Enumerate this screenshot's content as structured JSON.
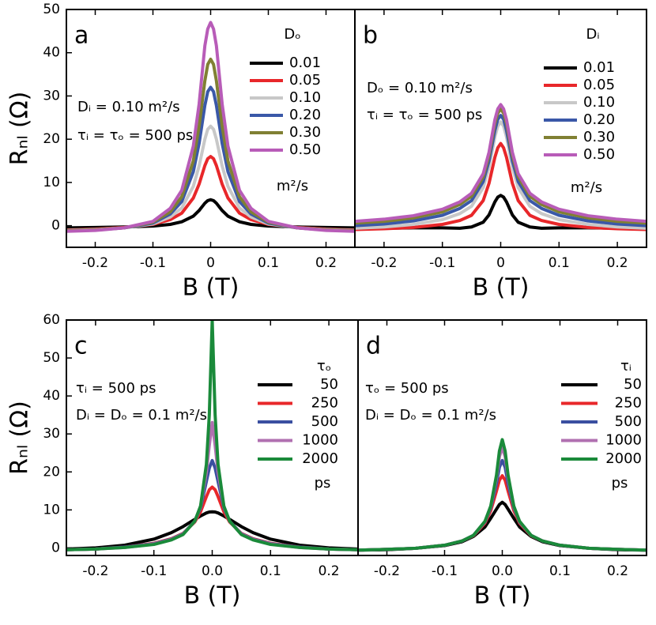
{
  "chart_data": [
    {
      "type": "line",
      "panel": "a",
      "ylabel": "Rₙₗ (Ω)",
      "xlabel": "B (T)",
      "annotations": [
        "Dᵢ = 0.10 m²/s",
        "τᵢ = τₒ = 500 ps"
      ],
      "legend_title": "Dₒ",
      "legend_footer": "m²/s",
      "xlim": [
        -0.25,
        0.25
      ],
      "ylim": [
        -5,
        50
      ],
      "xticks": [
        -0.2,
        -0.1,
        0,
        0.1,
        0.2
      ],
      "yticks": [
        0,
        10,
        20,
        30,
        40,
        50
      ],
      "x": [
        -0.25,
        -0.2,
        -0.15,
        -0.1,
        -0.07,
        -0.05,
        -0.03,
        -0.02,
        -0.01,
        -0.005,
        0,
        0.005,
        0.01,
        0.02,
        0.03,
        0.05,
        0.07,
        0.1,
        0.15,
        0.2,
        0.25
      ],
      "series": [
        {
          "name": "0.01",
          "color": "#000000",
          "values": [
            -0.5,
            -0.4,
            -0.3,
            -0.1,
            0.3,
            0.9,
            2.2,
            3.5,
            5.2,
            5.8,
            6,
            5.8,
            5.2,
            3.5,
            2.2,
            0.9,
            0.3,
            -0.1,
            -0.3,
            -0.4,
            -0.5
          ]
        },
        {
          "name": "0.05",
          "color": "#e8272a",
          "values": [
            -1,
            -0.8,
            -0.4,
            0.3,
            1.4,
            2.9,
            6.4,
            9.6,
            13.9,
            15.5,
            16,
            15.5,
            13.9,
            9.6,
            6.4,
            2.9,
            1.4,
            0.3,
            -0.4,
            -0.8,
            -1
          ]
        },
        {
          "name": "0.10",
          "color": "#c8c8c8",
          "values": [
            -1.1,
            -0.9,
            -0.5,
            0.4,
            2,
            4.1,
            9.1,
            13.8,
            20,
            22.3,
            23,
            22.3,
            20,
            13.8,
            9.1,
            4.1,
            2,
            0.4,
            -0.5,
            -0.9,
            -1.1
          ]
        },
        {
          "name": "0.20",
          "color": "#3a58a8",
          "values": [
            -1.2,
            -1,
            -0.5,
            0.6,
            2.7,
            5.6,
            12.5,
            19,
            27.8,
            31,
            32,
            31,
            27.8,
            19,
            12.5,
            5.6,
            2.7,
            0.6,
            -0.5,
            -1,
            -1.2
          ]
        },
        {
          "name": "0.30",
          "color": "#808033",
          "values": [
            -1.2,
            -1,
            -0.5,
            0.8,
            3.2,
            6.7,
            15,
            23,
            33.5,
            37.3,
            38.5,
            37.3,
            33.5,
            23,
            15,
            6.7,
            3.2,
            0.8,
            -0.5,
            -1,
            -1.2
          ]
        },
        {
          "name": "0.50",
          "color": "#b85cb8",
          "values": [
            -1.3,
            -1.1,
            -0.5,
            1,
            4,
            8.2,
            18.4,
            28.1,
            41.6,
            45.5,
            47,
            45.5,
            41.6,
            28.1,
            18.4,
            8.2,
            4,
            1,
            -0.5,
            -1.1,
            -1.3
          ]
        }
      ]
    },
    {
      "type": "line",
      "panel": "b",
      "xlabel": "B (T)",
      "annotations": [
        "Dₒ = 0.10 m²/s",
        "τᵢ = τₒ = 500 ps"
      ],
      "legend_title": "Dᵢ",
      "legend_footer": "m²/s",
      "xlim": [
        -0.25,
        0.25
      ],
      "ylim": [
        -5,
        50
      ],
      "xticks": [
        -0.2,
        -0.1,
        0,
        0.1,
        0.2
      ],
      "x": [
        -0.25,
        -0.2,
        -0.15,
        -0.1,
        -0.07,
        -0.05,
        -0.03,
        -0.02,
        -0.01,
        -0.005,
        0,
        0.005,
        0.01,
        0.02,
        0.03,
        0.05,
        0.07,
        0.1,
        0.15,
        0.2,
        0.25
      ],
      "series": [
        {
          "name": "0.01",
          "color": "#000000",
          "values": [
            -0.7,
            -0.6,
            -0.5,
            -0.5,
            -0.6,
            -0.3,
            0.8,
            2.5,
            5.5,
            6.6,
            7,
            6.6,
            5.5,
            2.5,
            0.8,
            -0.3,
            -0.6,
            -0.5,
            -0.5,
            -0.6,
            -0.7
          ]
        },
        {
          "name": "0.05",
          "color": "#e8272a",
          "values": [
            -0.9,
            -0.7,
            -0.4,
            0.3,
            1.2,
            2.4,
            5.8,
            9.8,
            15.8,
            18,
            19,
            18,
            15.8,
            9.8,
            5.8,
            2.4,
            1.2,
            0.3,
            -0.4,
            -0.7,
            -0.9
          ]
        },
        {
          "name": "0.10",
          "color": "#c8c8c8",
          "values": [
            -0.6,
            -0.3,
            0.3,
            1.4,
            2.8,
            4.5,
            8.8,
            13.5,
            20.5,
            23,
            24,
            23,
            20.5,
            13.5,
            8.8,
            4.5,
            2.8,
            1.4,
            0.3,
            -0.3,
            -0.6
          ]
        },
        {
          "name": "0.20",
          "color": "#3a58a8",
          "values": [
            0,
            0.4,
            1.1,
            2.4,
            4,
            5.8,
            10.2,
            15,
            22,
            24.6,
            25.5,
            24.6,
            22,
            15,
            10.2,
            5.8,
            4,
            2.4,
            1.1,
            0.4,
            0
          ]
        },
        {
          "name": "0.30",
          "color": "#808033",
          "values": [
            0.6,
            1,
            1.8,
            3.2,
            4.9,
            6.8,
            11.3,
            16.2,
            23.6,
            26,
            27,
            26,
            23.6,
            16.2,
            11.3,
            6.8,
            4.9,
            3.2,
            1.8,
            1,
            0.6
          ]
        },
        {
          "name": "0.50",
          "color": "#b85cb8",
          "values": [
            1,
            1.5,
            2.3,
            3.8,
            5.5,
            7.5,
            12,
            17,
            24.5,
            27,
            28,
            27,
            24.5,
            17,
            12,
            7.5,
            5.5,
            3.8,
            2.3,
            1.5,
            1
          ]
        }
      ]
    },
    {
      "type": "line",
      "panel": "c",
      "ylabel": "Rₙₗ (Ω)",
      "xlabel": "B (T)",
      "annotations": [
        "τᵢ = 500 ps",
        "Dᵢ = Dₒ = 0.1 m²/s"
      ],
      "legend_title": "τₒ",
      "legend_footer": "ps",
      "xlim": [
        -0.25,
        0.25
      ],
      "ylim": [
        -2,
        60
      ],
      "xticks": [
        -0.2,
        -0.1,
        {
          "value": 0,
          "label": "0.0"
        },
        0.1,
        0.2
      ],
      "yticks": [
        0,
        10,
        20,
        30,
        40,
        50,
        60
      ],
      "x": [
        -0.25,
        -0.2,
        -0.15,
        -0.1,
        -0.07,
        -0.05,
        -0.03,
        -0.02,
        -0.01,
        -0.005,
        0,
        0.005,
        0.01,
        0.02,
        0.03,
        0.05,
        0.07,
        0.1,
        0.15,
        0.2,
        0.25
      ],
      "series": [
        {
          "name": "50",
          "color": "#000000",
          "values": [
            -0.3,
            0,
            0.7,
            2.3,
            4,
            5.6,
            7.5,
            8.4,
            9.2,
            9.45,
            9.5,
            9.45,
            9.2,
            8.4,
            7.5,
            5.6,
            4,
            2.3,
            0.7,
            0,
            -0.3
          ]
        },
        {
          "name": "250",
          "color": "#e8272a",
          "values": [
            -0.5,
            -0.3,
            0.2,
            1.2,
            2.4,
            3.8,
            6.8,
            9.5,
            13.5,
            15.3,
            16,
            15.3,
            13.5,
            9.5,
            6.8,
            3.8,
            2.4,
            1.2,
            0.2,
            -0.3,
            -0.5
          ]
        },
        {
          "name": "500",
          "color": "#3a4fa0",
          "values": [
            -0.5,
            -0.3,
            0.2,
            1.1,
            2.3,
            3.7,
            7,
            10.5,
            17.5,
            21,
            23,
            21,
            17.5,
            10.5,
            7,
            3.7,
            2.3,
            1.1,
            0.2,
            -0.3,
            -0.5
          ]
        },
        {
          "name": "1000",
          "color": "#b070b0",
          "values": [
            -0.5,
            -0.3,
            0.1,
            1,
            2.2,
            3.6,
            7,
            10.8,
            20,
            27,
            33,
            27,
            20,
            10.8,
            7,
            3.6,
            2.2,
            1,
            0.1,
            -0.3,
            -0.5
          ]
        },
        {
          "name": "2000",
          "color": "#1a8a3a",
          "values": [
            -0.5,
            -0.3,
            0.1,
            0.9,
            2.1,
            3.5,
            7,
            11,
            22,
            35,
            60,
            35,
            22,
            11,
            7,
            3.5,
            2.1,
            0.9,
            0.1,
            -0.3,
            -0.5
          ]
        }
      ]
    },
    {
      "type": "line",
      "panel": "d",
      "xlabel": "B (T)",
      "annotations": [
        "τₒ = 500 ps",
        "Dᵢ = Dₒ = 0.1 m²/s"
      ],
      "legend_title": "τᵢ",
      "legend_footer": "ps",
      "xlim": [
        -0.25,
        0.25
      ],
      "ylim": [
        -2,
        60
      ],
      "xticks": [
        -0.2,
        -0.1,
        {
          "value": 0,
          "label": "0.0"
        },
        0.1,
        0.2
      ],
      "x": [
        -0.25,
        -0.2,
        -0.15,
        -0.1,
        -0.07,
        -0.05,
        -0.03,
        -0.02,
        -0.01,
        -0.005,
        0,
        0.005,
        0.01,
        0.02,
        0.03,
        0.05,
        0.07,
        0.1,
        0.15,
        0.2,
        0.25
      ],
      "series": [
        {
          "name": "50",
          "color": "#000000",
          "values": [
            -0.6,
            -0.5,
            -0.1,
            0.6,
            1.6,
            3,
            5.5,
            7.8,
            10.2,
            11.4,
            12,
            11.4,
            10.2,
            7.8,
            5.5,
            3,
            1.6,
            0.6,
            -0.1,
            -0.5,
            -0.6
          ]
        },
        {
          "name": "250",
          "color": "#e8272a",
          "values": [
            -0.6,
            -0.4,
            -0.1,
            0.7,
            1.8,
            3.2,
            6.5,
            9.8,
            15,
            17.8,
            19,
            17.8,
            15,
            9.8,
            6.5,
            3.2,
            1.8,
            0.7,
            -0.1,
            -0.4,
            -0.6
          ]
        },
        {
          "name": "500",
          "color": "#3a4fa0",
          "values": [
            -0.6,
            -0.4,
            -0.1,
            0.7,
            1.8,
            3.3,
            6.8,
            10.5,
            17,
            21.2,
            23,
            21.2,
            17,
            10.5,
            6.8,
            3.3,
            1.8,
            0.7,
            -0.1,
            -0.4,
            -0.6
          ]
        },
        {
          "name": "1000",
          "color": "#b070b0",
          "values": [
            -0.6,
            -0.4,
            -0.1,
            0.7,
            1.8,
            3.3,
            6.9,
            10.8,
            18.5,
            24,
            26.5,
            24,
            18.5,
            10.8,
            6.9,
            3.3,
            1.8,
            0.7,
            -0.1,
            -0.4,
            -0.6
          ]
        },
        {
          "name": "2000",
          "color": "#1a8a3a",
          "values": [
            -0.6,
            -0.4,
            -0.1,
            0.7,
            1.8,
            3.3,
            7,
            11,
            19.2,
            25.5,
            28.5,
            25.5,
            19.2,
            11,
            7,
            3.3,
            1.8,
            0.7,
            -0.1,
            -0.4,
            -0.6
          ]
        }
      ]
    }
  ]
}
